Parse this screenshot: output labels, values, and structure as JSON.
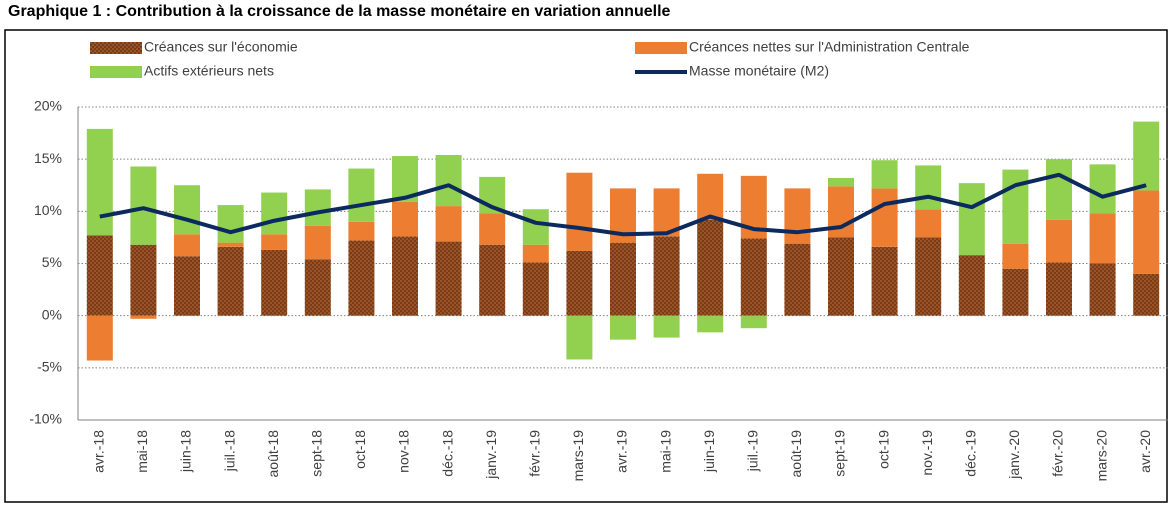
{
  "chart_data": {
    "type": "stacked-bar-line",
    "title": "Graphique 1 : Contribution à la croissance de la masse monétaire en variation annuelle",
    "categories": [
      "avr.-18",
      "mai-18",
      "juin-18",
      "juil.-18",
      "août-18",
      "sept-18",
      "oct-18",
      "nov-18",
      "déc.-18",
      "janv.-19",
      "févr.-19",
      "mars-19",
      "avr.-19",
      "mai-19",
      "juin-19",
      "juil.-19",
      "août-19",
      "sept-19",
      "oct-19",
      "nov.-19",
      "déc.-19",
      "janv.-20",
      "févr.-20",
      "mars-20",
      "avr.-20"
    ],
    "series": [
      {
        "name": "Créances sur l'économie",
        "type": "bar",
        "color": "#7a3b17",
        "values": [
          7.7,
          6.8,
          5.7,
          6.6,
          6.3,
          5.4,
          7.2,
          7.6,
          7.1,
          6.8,
          5.1,
          6.2,
          7.0,
          7.6,
          9.2,
          7.4,
          6.9,
          7.5,
          6.6,
          7.5,
          5.8,
          4.5,
          5.1,
          5.0,
          4.0
        ]
      },
      {
        "name": "Créances nettes sur l'Administration Centrale",
        "type": "bar",
        "color": "#ed7d31",
        "values": [
          -4.3,
          -0.3,
          2.1,
          0.4,
          1.5,
          3.2,
          1.8,
          3.3,
          3.4,
          3.0,
          1.7,
          7.5,
          5.2,
          4.6,
          4.4,
          6.0,
          5.3,
          4.9,
          5.6,
          2.7,
          0,
          2.4,
          4.1,
          4.8,
          8.0
        ]
      },
      {
        "name": "Actifs extérieurs nets",
        "type": "bar",
        "color": "#92d050",
        "values": [
          10.2,
          7.5,
          4.7,
          3.6,
          4.0,
          3.5,
          5.1,
          4.4,
          4.9,
          3.5,
          3.4,
          -4.2,
          -2.3,
          -2.1,
          -1.6,
          -1.2,
          0,
          0.8,
          2.7,
          4.2,
          6.9,
          7.1,
          5.8,
          4.7,
          6.6
        ]
      },
      {
        "name": "Masse monétaire (M2)",
        "type": "line",
        "color": "#0c2a5e",
        "values": [
          9.5,
          10.3,
          9.2,
          8.0,
          9.1,
          9.9,
          10.6,
          11.3,
          12.5,
          10.4,
          8.9,
          8.4,
          7.8,
          7.9,
          9.5,
          8.3,
          8.0,
          8.5,
          10.7,
          11.4,
          10.4,
          12.5,
          13.5,
          11.4,
          12.5
        ]
      }
    ],
    "ylim": [
      -10,
      20
    ],
    "yticks": [
      {
        "value": -10,
        "label": "-10%"
      },
      {
        "value": -5,
        "label": "-5%"
      },
      {
        "value": 0,
        "label": "0%"
      },
      {
        "value": 5,
        "label": "5%"
      },
      {
        "value": 10,
        "label": "10%"
      },
      {
        "value": 15,
        "label": "15%"
      },
      {
        "value": 20,
        "label": "20%"
      }
    ],
    "grid": true
  }
}
